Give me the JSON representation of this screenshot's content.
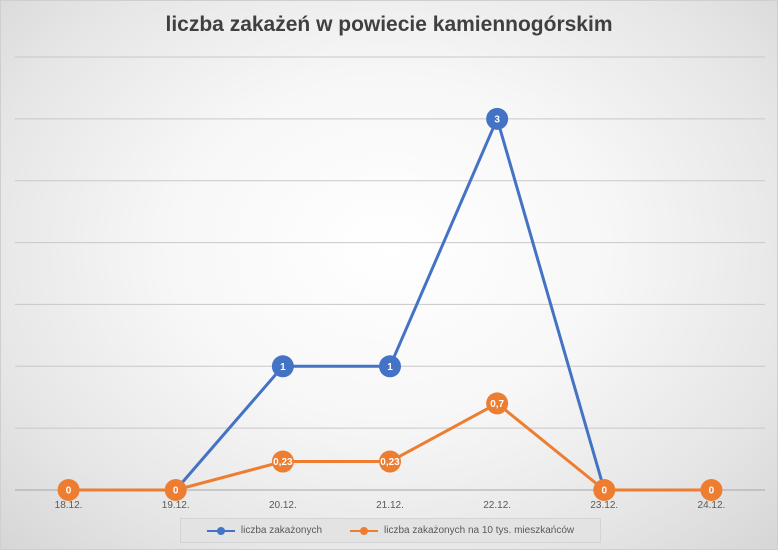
{
  "chart_data": {
    "type": "line",
    "title": "liczba zakażeń w powiecie kamiennogórskim",
    "categories": [
      "18.12.",
      "19.12.",
      "20.12.",
      "21.12.",
      "22.12.",
      "23.12.",
      "24.12."
    ],
    "series": [
      {
        "name": "liczba zakażonych",
        "color": "#4472C4",
        "values": [
          null,
          0,
          1,
          1,
          3,
          0,
          null
        ],
        "labels": [
          "",
          "",
          "1",
          "1",
          "3",
          "",
          ""
        ]
      },
      {
        "name": "liczba zakażonych na 10 tys. mieszkańców",
        "color": "#ED7D31",
        "values": [
          0,
          0,
          0.23,
          0.23,
          0.7,
          0,
          0
        ],
        "labels": [
          "0",
          "0",
          "0,23",
          "0,23",
          "0,7",
          "0",
          "0"
        ]
      }
    ],
    "ylim": [
      0,
      3.5
    ],
    "gridlines": true,
    "y_tick_labels_visible": false,
    "legend_position": "bottom"
  }
}
